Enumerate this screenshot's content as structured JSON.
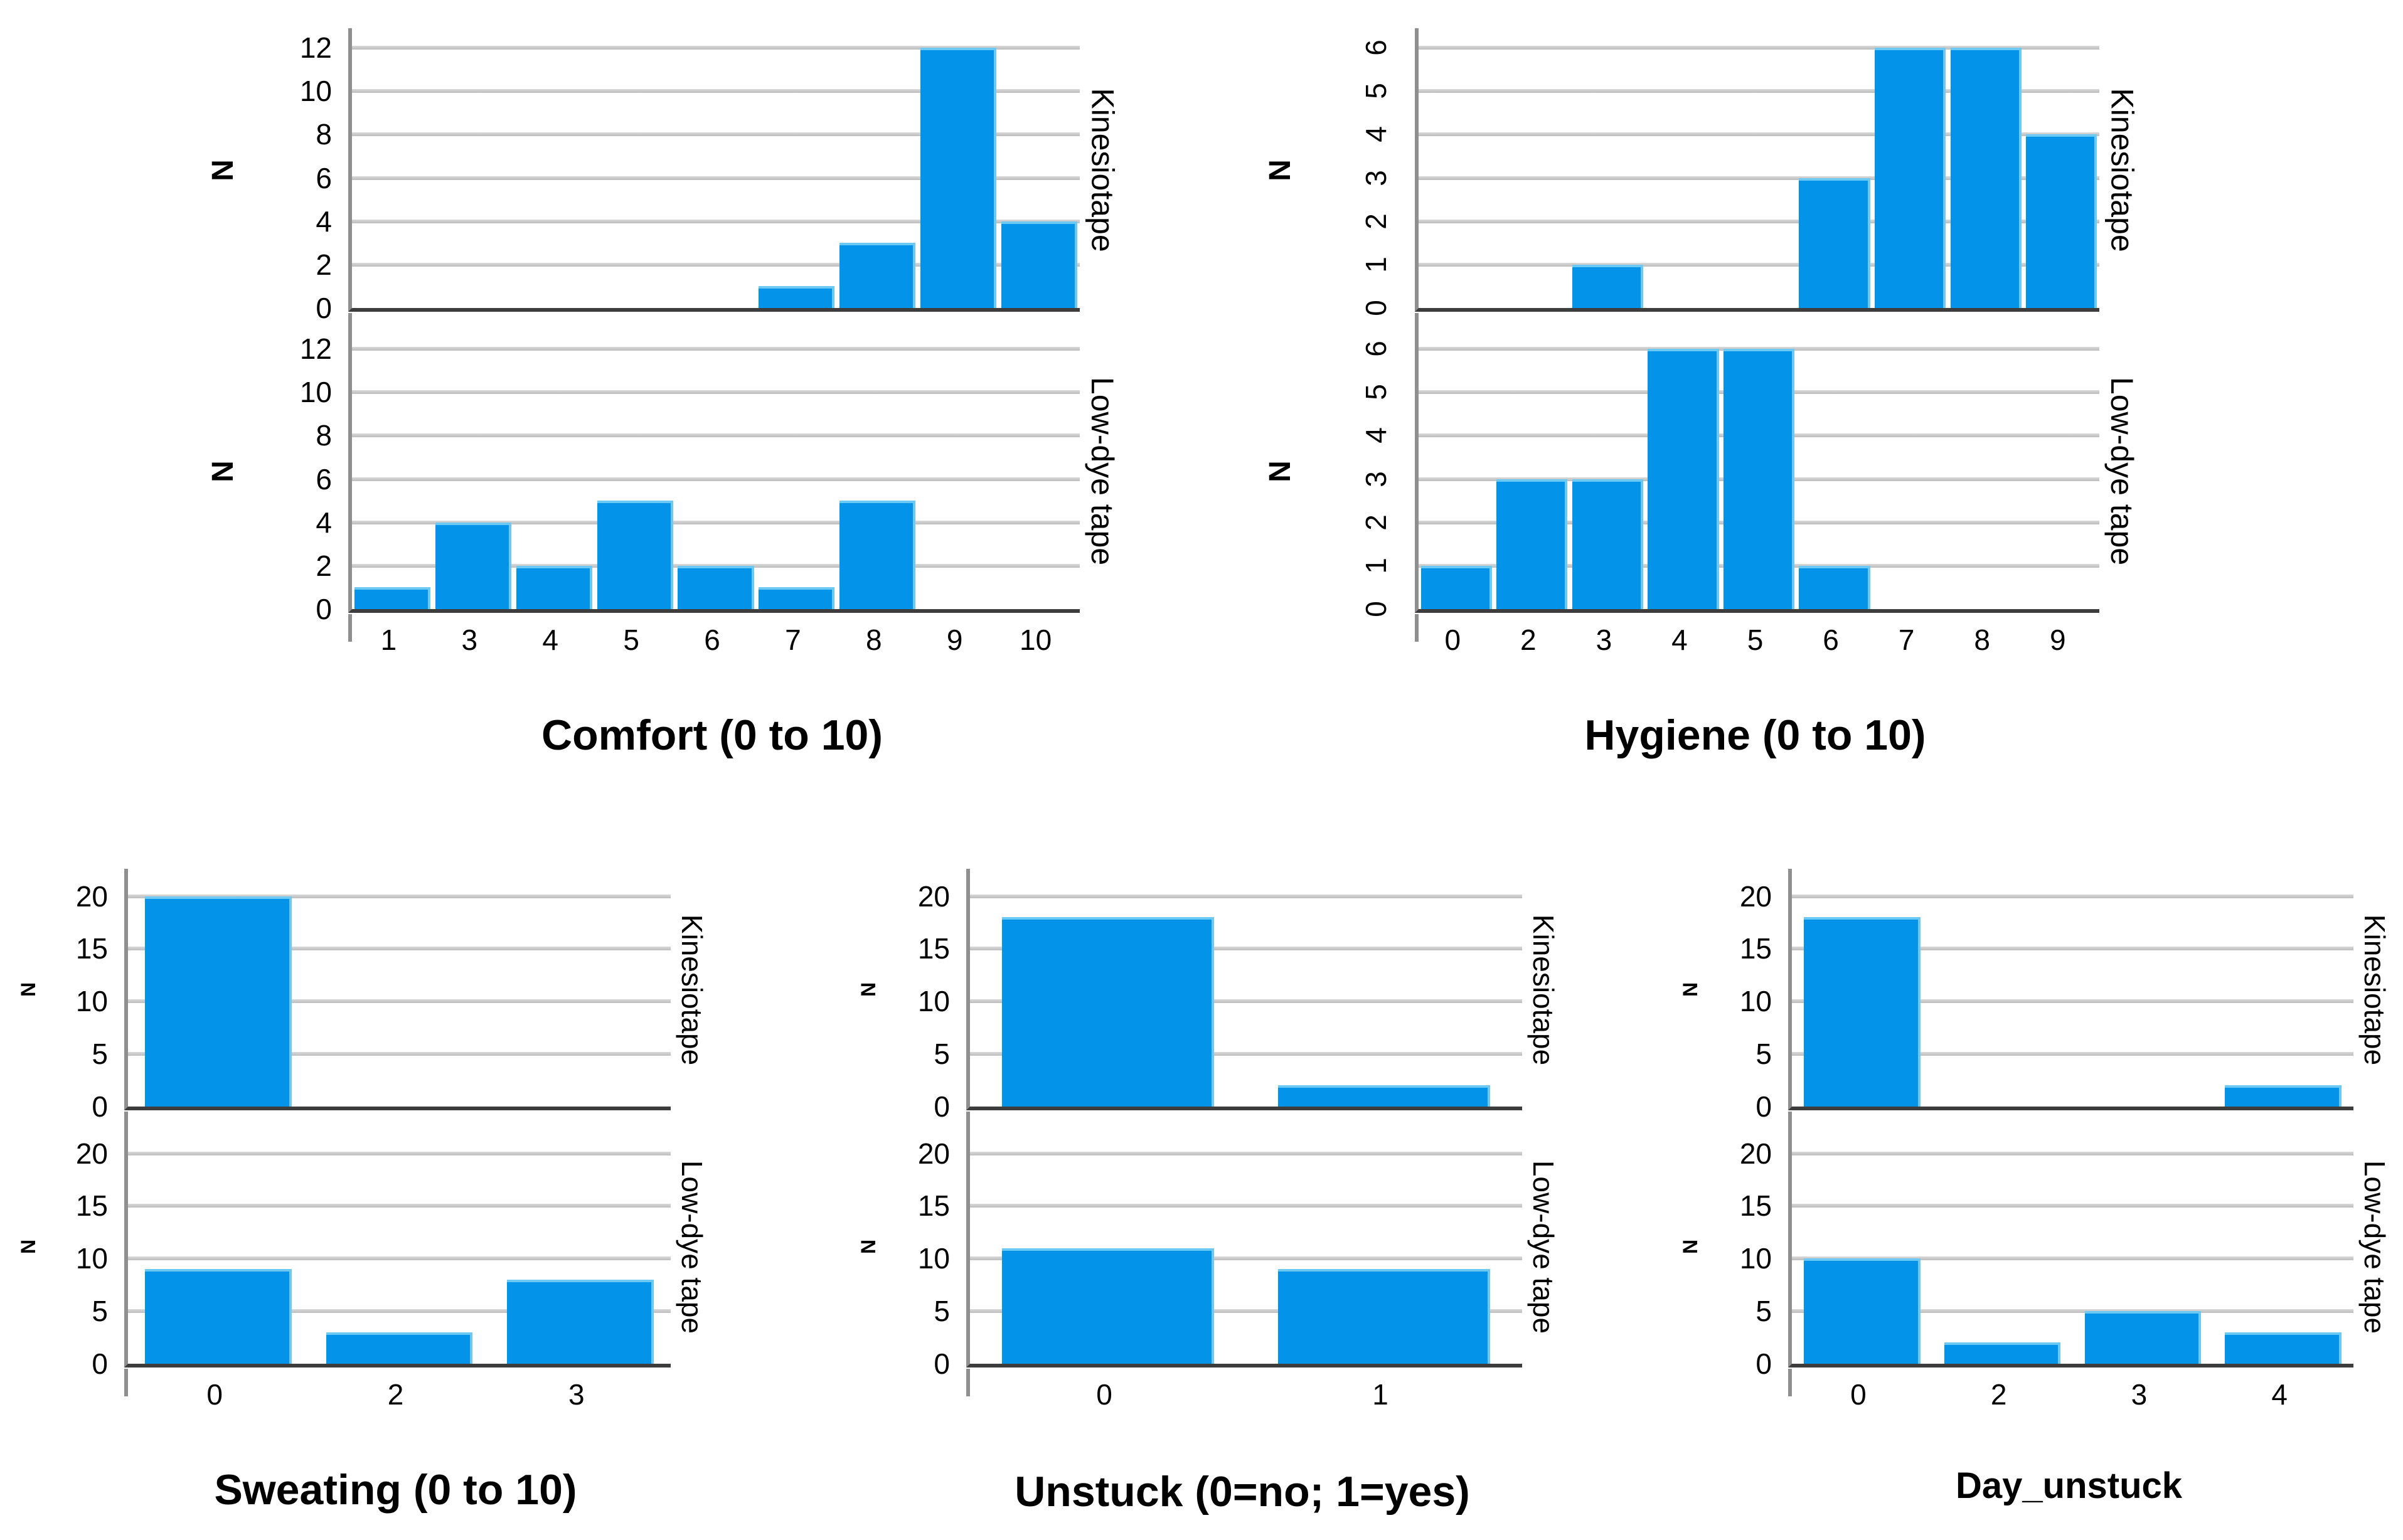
{
  "page": {
    "background": "#ffffff"
  },
  "colors": {
    "bar": "#0394e9",
    "bar_highlight": "#6cc9f4",
    "gridline": "#c9c9c9",
    "axis_line": "#8f8f8f",
    "baseline": "#3d3d3d",
    "text": "#000000"
  },
  "chart_data": [
    {
      "id": "comfort",
      "type": "bar",
      "title": "Comfort (0 to 10)",
      "y_axis_title": "N",
      "y_ticks": [
        0,
        2,
        4,
        6,
        8,
        10,
        12
      ],
      "ylim": [
        0,
        12.9
      ],
      "y_tick_labels_rotated": false,
      "grid": true,
      "legend_position": "none",
      "categories": [
        "1",
        "3",
        "4",
        "5",
        "6",
        "7",
        "8",
        "9",
        "10"
      ],
      "panels": [
        {
          "label": "Kinesiotape",
          "values": [
            0,
            0,
            0,
            0,
            0,
            1,
            3,
            12,
            4
          ]
        },
        {
          "label": "Low-dye tape",
          "values": [
            1,
            4,
            2,
            5,
            2,
            1,
            5,
            0,
            0
          ]
        }
      ]
    },
    {
      "id": "hygiene",
      "type": "bar",
      "title": "Hygiene (0 to 10)",
      "y_axis_title": "N",
      "y_ticks": [
        0,
        1,
        2,
        3,
        4,
        5,
        6
      ],
      "ylim": [
        0,
        6.45
      ],
      "y_tick_labels_rotated": true,
      "grid": true,
      "legend_position": "none",
      "categories": [
        "0",
        "2",
        "3",
        "4",
        "5",
        "6",
        "7",
        "8",
        "9"
      ],
      "panels": [
        {
          "label": "Kinesiotape",
          "values": [
            0,
            0,
            1,
            0,
            0,
            3,
            6,
            6,
            4
          ]
        },
        {
          "label": "Low-dye tape",
          "values": [
            1,
            3,
            3,
            6,
            6,
            1,
            0,
            0,
            0
          ]
        }
      ]
    },
    {
      "id": "sweating",
      "type": "bar",
      "title": "Sweating (0 to 10)",
      "y_axis_title": "N",
      "y_ticks": [
        0,
        5,
        10,
        15,
        20
      ],
      "ylim": [
        0,
        22.6
      ],
      "y_tick_labels_rotated": false,
      "grid": true,
      "legend_position": "none",
      "categories": [
        "0",
        "2",
        "3"
      ],
      "panels": [
        {
          "label": "Kinesiotape",
          "values": [
            20,
            0,
            0
          ]
        },
        {
          "label": "Low-dye tape",
          "values": [
            9,
            3,
            8
          ]
        }
      ]
    },
    {
      "id": "unstuck",
      "type": "bar",
      "title": "Unstuck (0=no; 1=yes)",
      "y_axis_title": "N",
      "y_ticks": [
        0,
        5,
        10,
        15,
        20
      ],
      "ylim": [
        0,
        22.6
      ],
      "y_tick_labels_rotated": false,
      "grid": true,
      "legend_position": "none",
      "categories": [
        "0",
        "1"
      ],
      "panels": [
        {
          "label": "Kinesiotape",
          "values": [
            18,
            2
          ]
        },
        {
          "label": "Low-dye tape",
          "values": [
            11,
            9
          ]
        }
      ]
    },
    {
      "id": "day_unstuck",
      "type": "bar",
      "title": "Day_unstuck",
      "y_axis_title": "N",
      "y_ticks": [
        0,
        5,
        10,
        15,
        20
      ],
      "ylim": [
        0,
        22.6
      ],
      "y_tick_labels_rotated": false,
      "grid": true,
      "legend_position": "none",
      "categories": [
        "0",
        "2",
        "3",
        "4"
      ],
      "panels": [
        {
          "label": "Kinesiotape",
          "values": [
            18,
            0,
            0,
            2
          ]
        },
        {
          "label": "Low-dye tape",
          "values": [
            10,
            2,
            5,
            3
          ]
        }
      ]
    }
  ]
}
